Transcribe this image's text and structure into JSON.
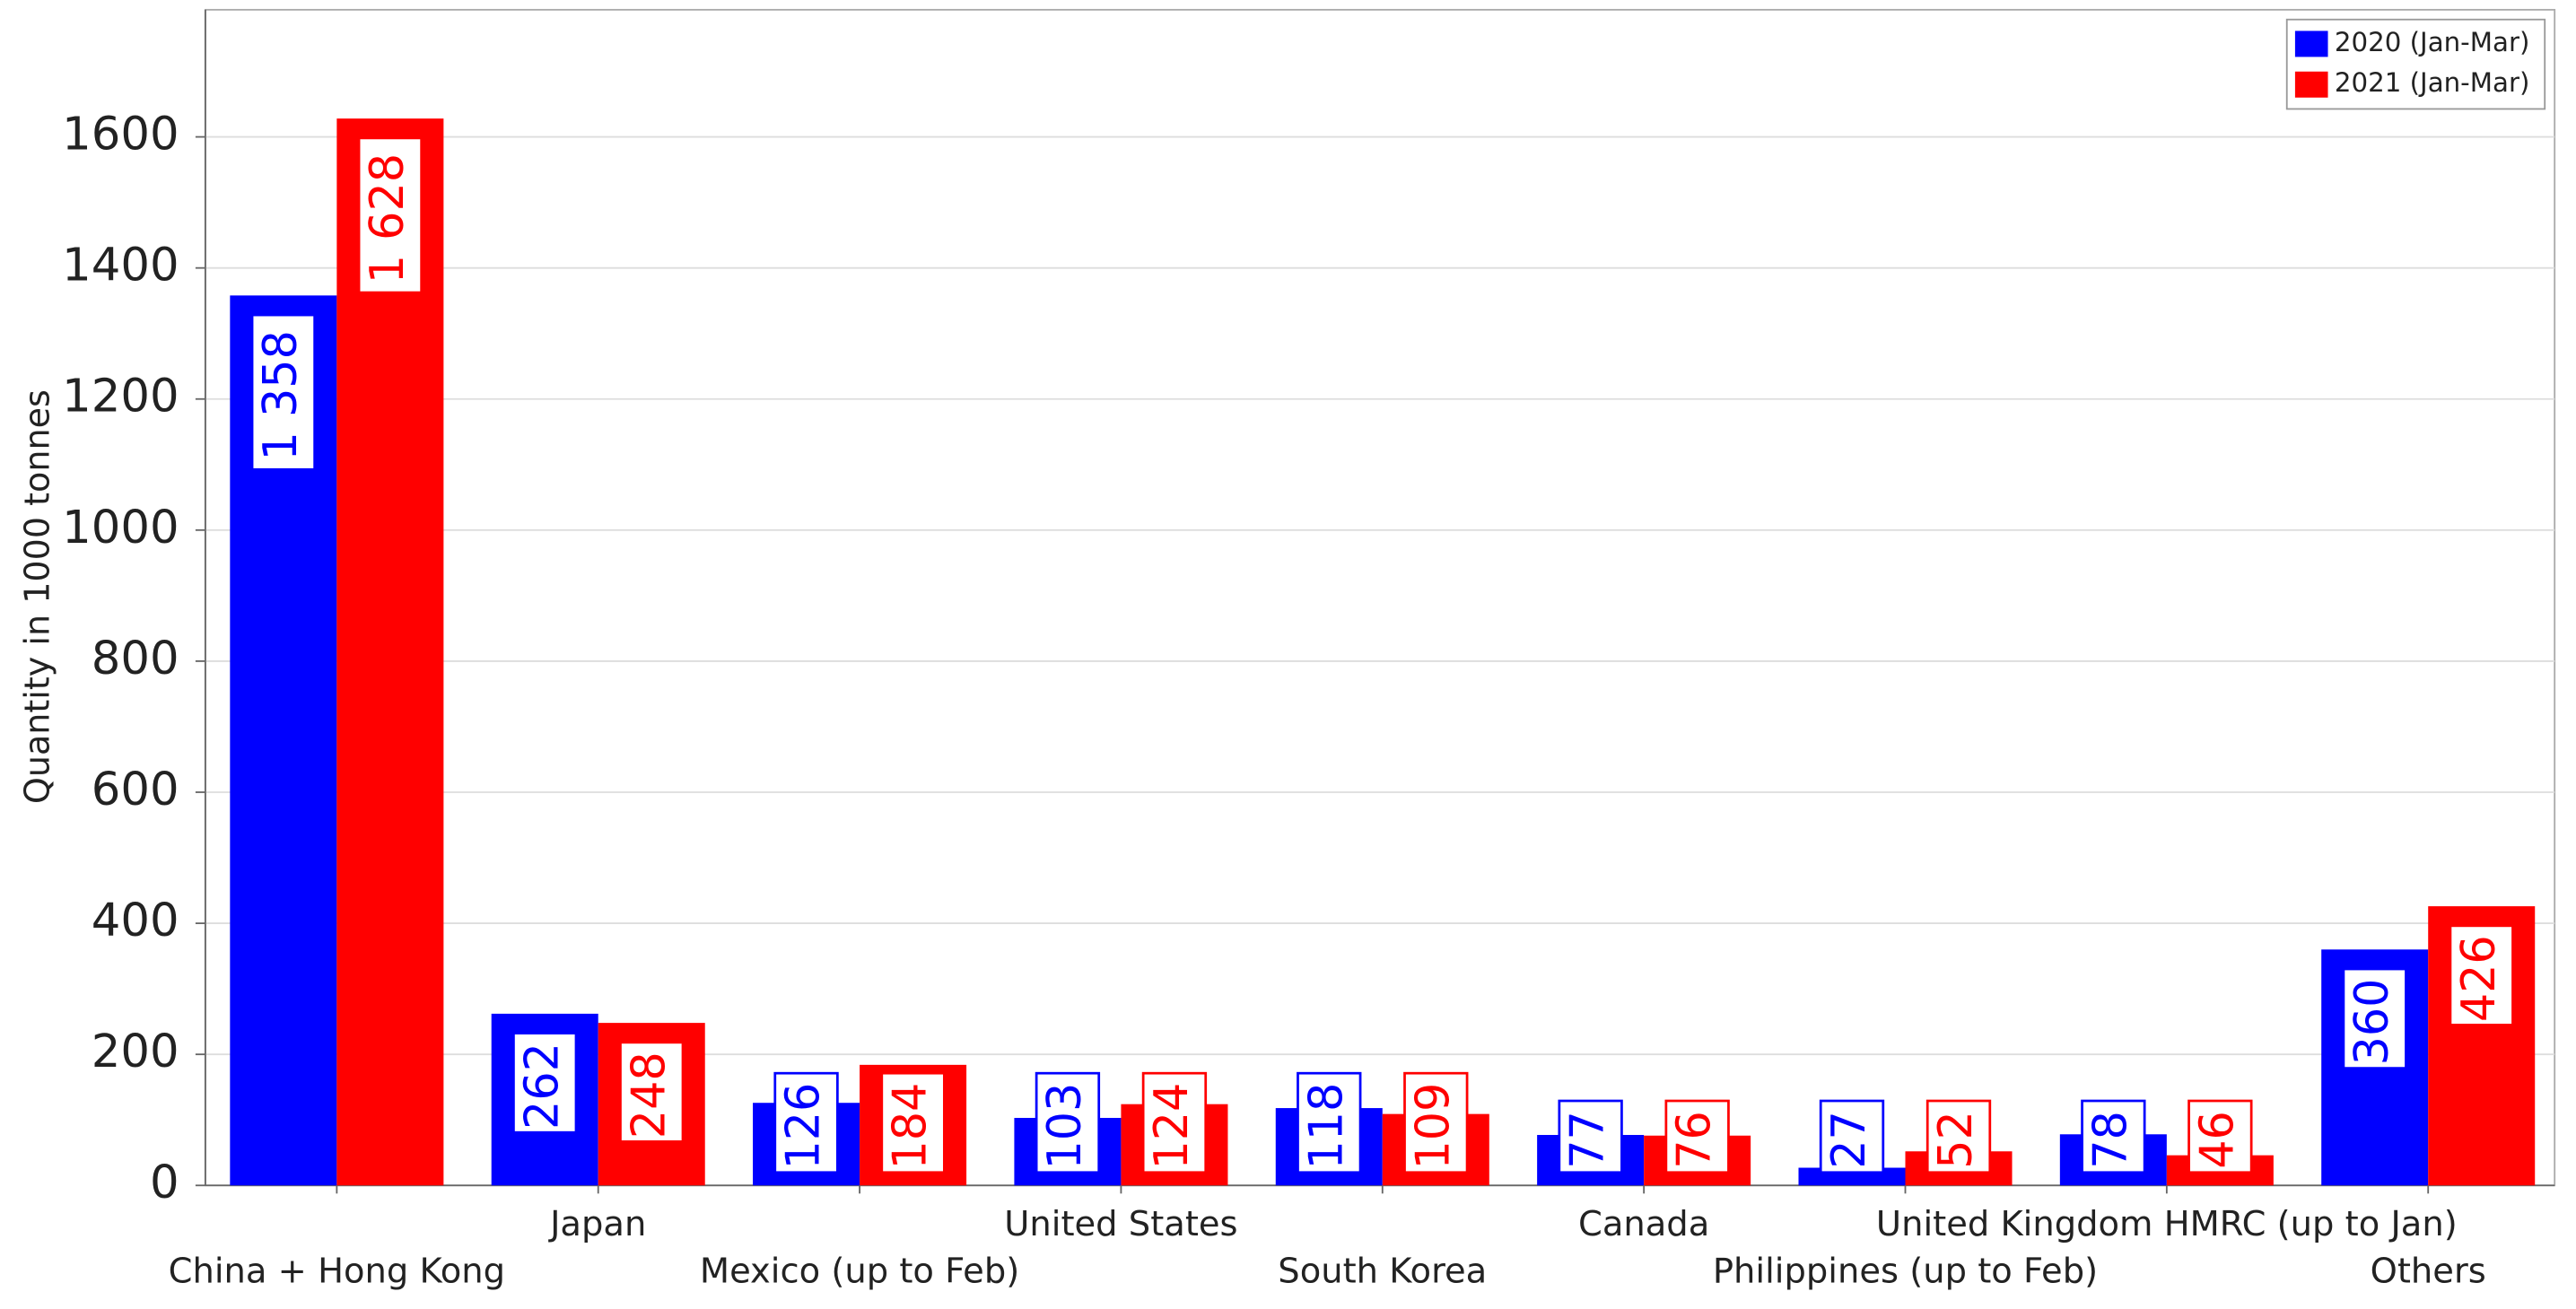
{
  "chart_data": {
    "type": "bar",
    "y_label": "Quantity in 1000 tonnes",
    "categories": [
      "China + Hong Kong",
      "Japan",
      "Mexico (up to Feb)",
      "United States",
      "South Korea",
      "Canada",
      "Philippines (up to Feb)",
      "United Kingdom HMRC (up to Jan)",
      "Others"
    ],
    "series": [
      {
        "name": "2020 (Jan-Mar)",
        "color": "#0000ff",
        "values": [
          1358,
          262,
          126,
          103,
          118,
          77,
          27,
          78,
          360
        ],
        "value_labels": [
          "1 358",
          "262",
          "126",
          "103",
          "118",
          "77",
          "27",
          "78",
          "360"
        ]
      },
      {
        "name": "2021 (Jan-Mar)",
        "color": "#ff0000",
        "values": [
          1628,
          248,
          184,
          124,
          109,
          76,
          52,
          46,
          426
        ],
        "value_labels": [
          "1 628",
          "248",
          "184",
          "124",
          "109",
          "76",
          "52",
          "46",
          "426"
        ]
      }
    ],
    "ylim": [
      0,
      1794
    ],
    "yticks": [
      0,
      200,
      400,
      600,
      800,
      1000,
      1200,
      1400,
      1600
    ],
    "grid": true,
    "legend": "upper right"
  }
}
